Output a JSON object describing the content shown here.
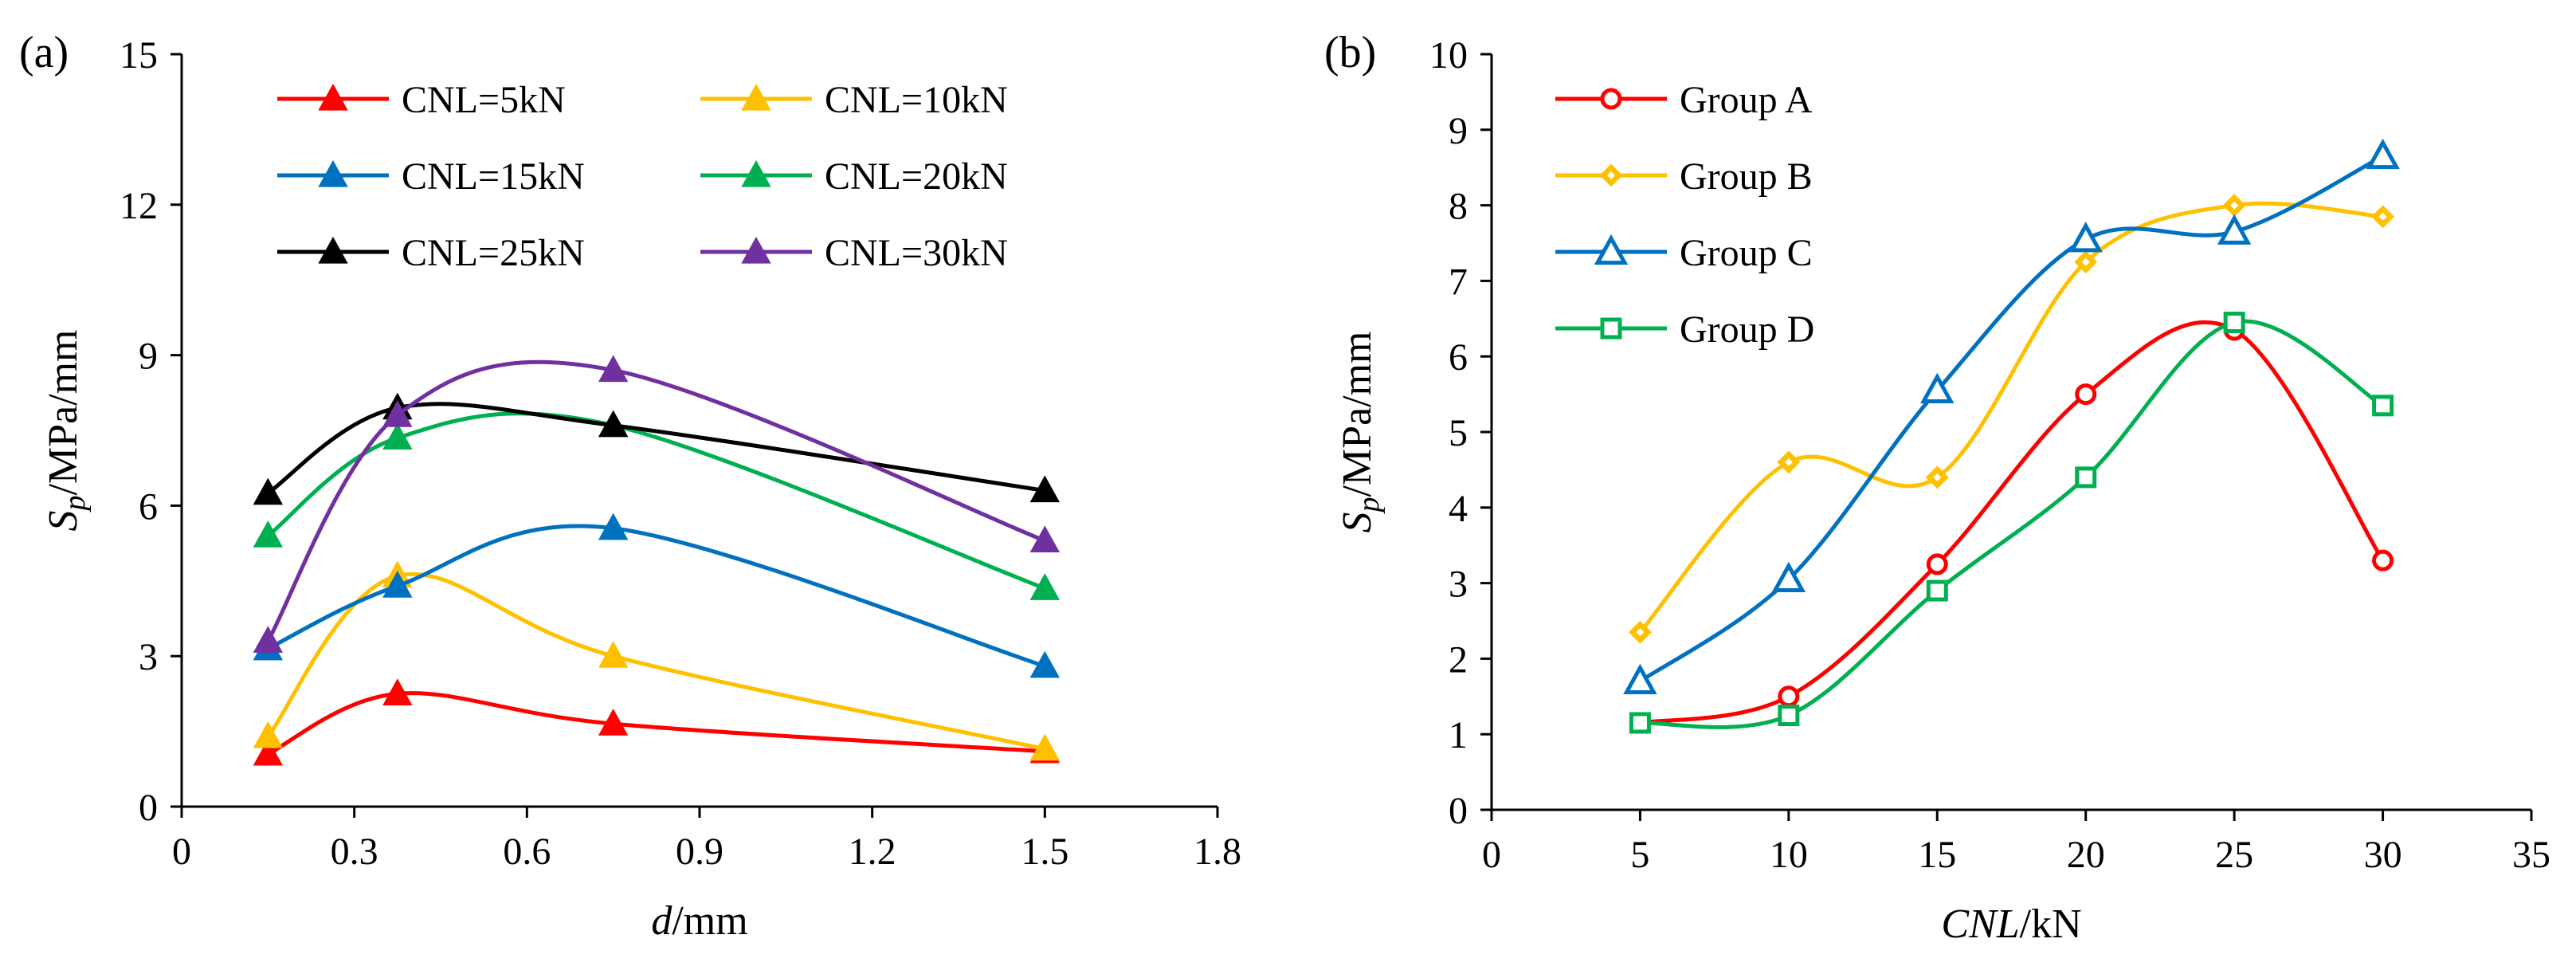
{
  "chart_data": [
    {
      "panel": "(a)",
      "type": "line",
      "smooth": true,
      "marker": "filled-triangle",
      "xlabel": {
        "italic": "d",
        "rest": "/mm"
      },
      "ylabel": {
        "main": "S",
        "sub": "p",
        "rest": "/MPa/mm"
      },
      "xlim": [
        0,
        1.8
      ],
      "ylim": [
        0,
        15
      ],
      "xticks": [
        "0",
        "0.3",
        "0.6",
        "0.9",
        "1.2",
        "1.5",
        "1.8"
      ],
      "yticks": [
        "0",
        "3",
        "6",
        "9",
        "12",
        "15"
      ],
      "x": [
        0.15,
        0.375,
        0.75,
        1.5
      ],
      "legend_position": "top-center, two columns",
      "series": [
        {
          "name": "CNL=5kN",
          "color": "#ff0000",
          "values": [
            1.05,
            2.25,
            1.65,
            1.1
          ]
        },
        {
          "name": "CNL=10kN",
          "color": "#ffc000",
          "values": [
            1.4,
            4.6,
            3.0,
            1.15
          ]
        },
        {
          "name": "CNL=15kN",
          "color": "#0070c0",
          "values": [
            3.15,
            4.4,
            5.55,
            2.8
          ]
        },
        {
          "name": "CNL=20kN",
          "color": "#00b050",
          "values": [
            5.4,
            7.35,
            7.6,
            4.35
          ]
        },
        {
          "name": "CNL=25kN",
          "color": "#000000",
          "values": [
            6.25,
            7.95,
            7.6,
            6.3
          ]
        },
        {
          "name": "CNL=30kN",
          "color": "#7030a0",
          "values": [
            3.3,
            7.8,
            8.7,
            5.3
          ]
        }
      ]
    },
    {
      "panel": "(b)",
      "type": "line",
      "smooth": true,
      "marker": "hollow",
      "xlabel": {
        "italic": "CNL",
        "rest": "/kN"
      },
      "ylabel": {
        "main": "S",
        "sub": "p",
        "rest": "/MPa/mm"
      },
      "xlim": [
        0,
        35
      ],
      "ylim": [
        0,
        10
      ],
      "xticks": [
        "0",
        "5",
        "10",
        "15",
        "20",
        "25",
        "30",
        "35"
      ],
      "yticks": [
        "0",
        "1",
        "2",
        "3",
        "4",
        "5",
        "6",
        "7",
        "8",
        "9",
        "10"
      ],
      "x": [
        5,
        10,
        15,
        20,
        25,
        30
      ],
      "legend_position": "top-left",
      "series": [
        {
          "name": "Group A",
          "color": "#ff0000",
          "marker": "circle",
          "values": [
            1.15,
            1.5,
            3.25,
            5.5,
            6.35,
            3.3
          ]
        },
        {
          "name": "Group B",
          "color": "#ffc000",
          "marker": "diamond",
          "values": [
            2.35,
            4.6,
            4.4,
            7.25,
            8.0,
            7.85
          ]
        },
        {
          "name": "Group C",
          "color": "#0070c0",
          "marker": "triangle",
          "values": [
            1.7,
            3.05,
            5.55,
            7.55,
            7.65,
            8.65
          ]
        },
        {
          "name": "Group D",
          "color": "#00b050",
          "marker": "square",
          "values": [
            1.15,
            1.25,
            2.9,
            4.4,
            6.45,
            5.35
          ]
        }
      ]
    }
  ]
}
